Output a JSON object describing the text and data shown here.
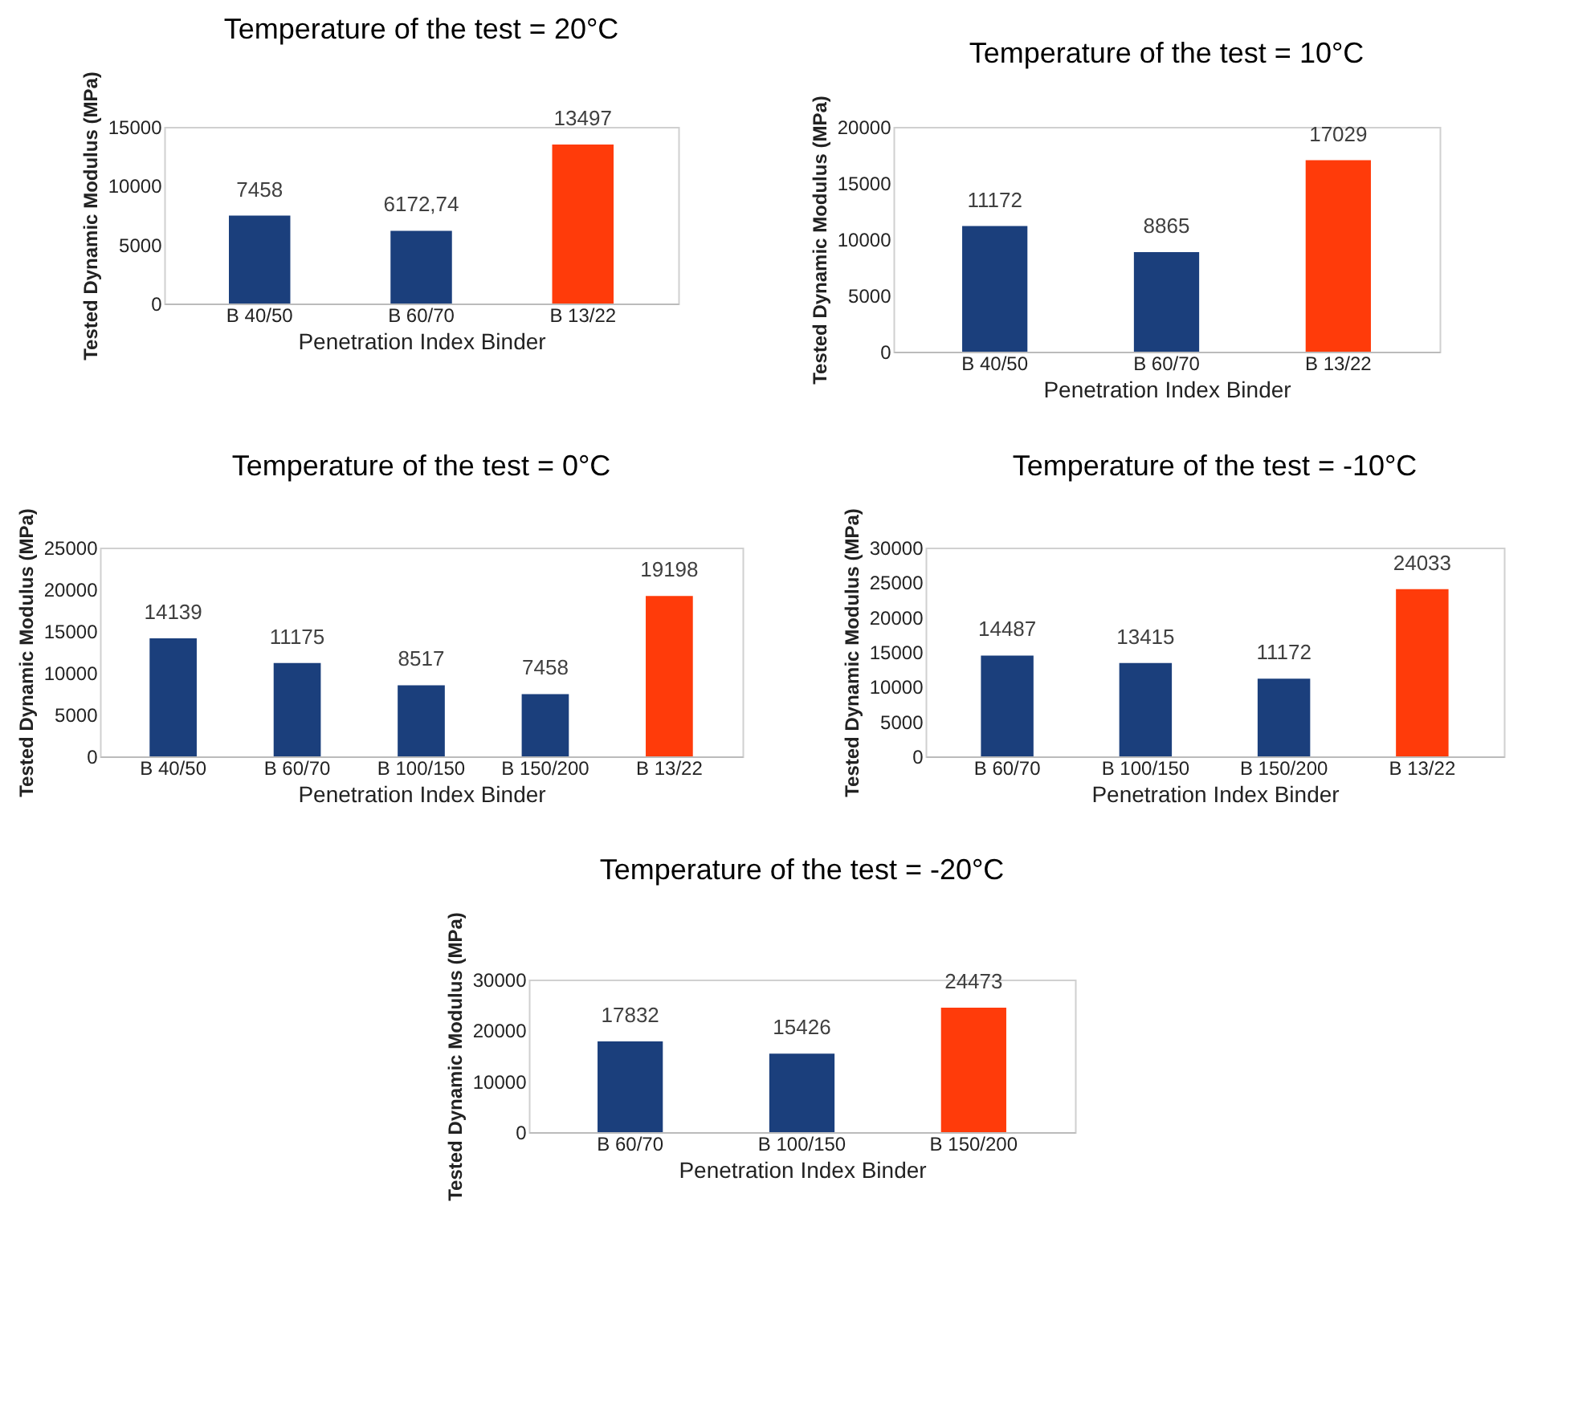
{
  "chart_data": [
    {
      "type": "bar",
      "title": "Temperature of the test = 20°C",
      "xlabel": "Penetration Index Binder",
      "ylabel": "Tested Dynamic Modulus (MPa)",
      "categories": [
        "B 40/50",
        "B 60/70",
        "B 13/22"
      ],
      "values": [
        7458,
        6172.74,
        13497
      ],
      "colors": [
        "#1b3f7c",
        "#1b3f7c",
        "#ff3b0a"
      ],
      "value_labels": [
        "7458",
        "6172,74",
        "13497"
      ],
      "ylim": [
        0,
        15000
      ],
      "yticks": [
        0,
        5000,
        10000,
        15000
      ],
      "grid": false
    },
    {
      "type": "bar",
      "title": "Temperature of the test = 10°C",
      "xlabel": "Penetration Index Binder",
      "ylabel": "Tested Dynamic Modulus (MPa)",
      "categories": [
        "B 40/50",
        "B 60/70",
        "B 13/22"
      ],
      "values": [
        11172,
        8865,
        17029
      ],
      "colors": [
        "#1b3f7c",
        "#1b3f7c",
        "#ff3b0a"
      ],
      "data_labels": true,
      "ylim": [
        0,
        20000
      ],
      "yticks": [
        0,
        5000,
        10000,
        15000,
        20000
      ],
      "grid": false
    },
    {
      "type": "bar",
      "title": "Temperature of the test = 0°C",
      "xlabel": "Penetration Index Binder",
      "ylabel": "Tested Dynamic Modulus (MPa)",
      "categories": [
        "B 40/50",
        "B 60/70",
        "B 100/150",
        "B 150/200",
        "B 13/22"
      ],
      "values": [
        14139,
        11175,
        8517,
        7458,
        19198
      ],
      "colors": [
        "#1b3f7c",
        "#1b3f7c",
        "#1b3f7c",
        "#1b3f7c",
        "#ff3b0a"
      ],
      "data_labels": true,
      "ylim": [
        0,
        25000
      ],
      "yticks": [
        0,
        5000,
        10000,
        15000,
        20000,
        25000
      ],
      "grid": false
    },
    {
      "type": "bar",
      "title": "Temperature of the test = -10°C",
      "xlabel": "Penetration Index Binder",
      "ylabel": "Tested Dynamic Modulus (MPa)",
      "categories": [
        "B 60/70",
        "B 100/150",
        "B 150/200",
        "B 13/22"
      ],
      "values": [
        14487,
        13415,
        11172,
        24033
      ],
      "colors": [
        "#1b3f7c",
        "#1b3f7c",
        "#1b3f7c",
        "#ff3b0a"
      ],
      "data_labels": true,
      "ylim": [
        0,
        30000
      ],
      "yticks": [
        0,
        5000,
        10000,
        15000,
        20000,
        25000,
        30000
      ],
      "grid": false
    },
    {
      "type": "bar",
      "title": "Temperature of the test = -20°C",
      "xlabel": "Penetration Index Binder",
      "ylabel": "Tested Dynamic Modulus (MPa)",
      "categories": [
        "B 60/70",
        "B 100/150",
        "B 150/200"
      ],
      "values": [
        17832,
        15426,
        24473
      ],
      "colors": [
        "#1b3f7c",
        "#1b3f7c",
        "#ff3b0a"
      ],
      "data_labels": true,
      "ylim": [
        0,
        30000
      ],
      "yticks": [
        0,
        10000,
        20000,
        30000
      ],
      "grid": false
    }
  ]
}
